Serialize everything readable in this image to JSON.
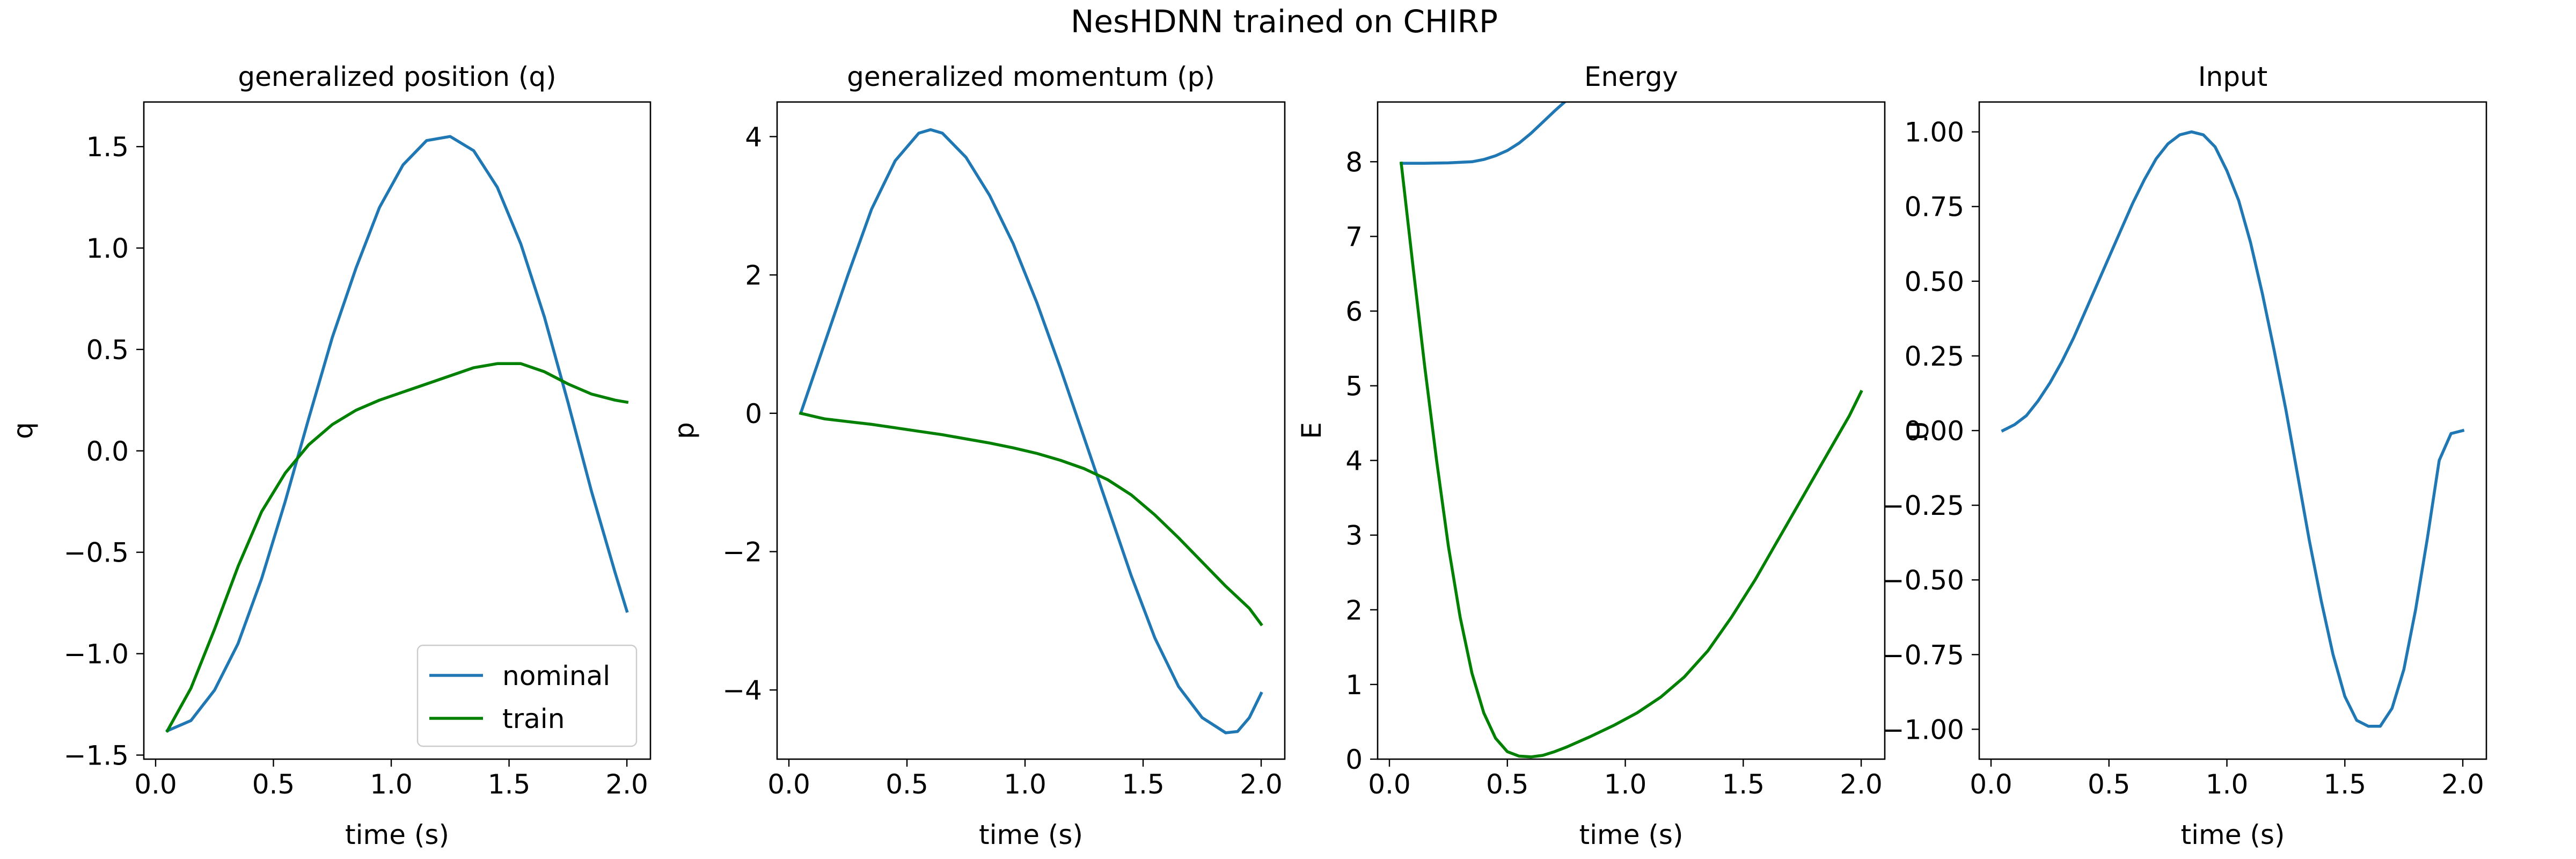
{
  "figure": {
    "title": "NesHDNN trained on CHIRP"
  },
  "colors": {
    "nominal": "#1f77b4",
    "train": "#008000"
  },
  "chart_data": [
    {
      "type": "line",
      "title": "generalized position (q)",
      "xlabel": "time (s)",
      "ylabel": "q",
      "xlim": [
        -0.05,
        2.1
      ],
      "ylim": [
        -1.52,
        1.72
      ],
      "xticks": [
        0.0,
        0.5,
        1.0,
        1.5,
        2.0
      ],
      "xtick_labels": [
        "0.0",
        "0.5",
        "1.0",
        "1.5",
        "2.0"
      ],
      "yticks": [
        -1.5,
        -1.0,
        -0.5,
        0.0,
        0.5,
        1.0,
        1.5
      ],
      "ytick_labels": [
        "−1.5",
        "−1.0",
        "−0.5",
        "0.0",
        "0.5",
        "1.0",
        "1.5"
      ],
      "legend": {
        "position": "lower-right",
        "entries": [
          "nominal",
          "train"
        ]
      },
      "series": [
        {
          "name": "nominal",
          "color": "#1f77b4",
          "x": [
            0.05,
            0.15,
            0.25,
            0.35,
            0.45,
            0.55,
            0.65,
            0.75,
            0.85,
            0.95,
            1.05,
            1.15,
            1.25,
            1.35,
            1.45,
            1.55,
            1.65,
            1.75,
            1.85,
            1.95,
            2.0
          ],
          "y": [
            -1.38,
            -1.33,
            -1.18,
            -0.95,
            -0.63,
            -0.25,
            0.16,
            0.56,
            0.9,
            1.2,
            1.41,
            1.53,
            1.55,
            1.48,
            1.3,
            1.02,
            0.66,
            0.24,
            -0.2,
            -0.6,
            -0.79
          ]
        },
        {
          "name": "train",
          "color": "#008000",
          "x": [
            0.05,
            0.15,
            0.25,
            0.35,
            0.45,
            0.55,
            0.65,
            0.75,
            0.85,
            0.95,
            1.05,
            1.15,
            1.25,
            1.35,
            1.45,
            1.55,
            1.65,
            1.75,
            1.85,
            1.95,
            2.0
          ],
          "y": [
            -1.38,
            -1.17,
            -0.88,
            -0.57,
            -0.3,
            -0.11,
            0.03,
            0.13,
            0.2,
            0.25,
            0.29,
            0.33,
            0.37,
            0.41,
            0.43,
            0.43,
            0.39,
            0.33,
            0.28,
            0.25,
            0.24
          ]
        }
      ]
    },
    {
      "type": "line",
      "title": "generalized momentum (p)",
      "xlabel": "time (s)",
      "ylabel": "p",
      "xlim": [
        -0.05,
        2.1
      ],
      "ylim": [
        -5.0,
        4.5
      ],
      "xticks": [
        0.0,
        0.5,
        1.0,
        1.5,
        2.0
      ],
      "xtick_labels": [
        "0.0",
        "0.5",
        "1.0",
        "1.5",
        "2.0"
      ],
      "yticks": [
        -4,
        -2,
        0,
        2,
        4
      ],
      "ytick_labels": [
        "−4",
        "−2",
        "0",
        "2",
        "4"
      ],
      "series": [
        {
          "name": "nominal",
          "color": "#1f77b4",
          "x": [
            0.05,
            0.15,
            0.25,
            0.35,
            0.45,
            0.55,
            0.6,
            0.65,
            0.75,
            0.85,
            0.95,
            1.05,
            1.15,
            1.25,
            1.35,
            1.45,
            1.55,
            1.65,
            1.75,
            1.85,
            1.9,
            1.95,
            2.0
          ],
          "y": [
            0.0,
            1.0,
            2.0,
            2.95,
            3.65,
            4.05,
            4.1,
            4.05,
            3.7,
            3.15,
            2.45,
            1.6,
            0.65,
            -0.35,
            -1.35,
            -2.35,
            -3.25,
            -3.95,
            -4.4,
            -4.62,
            -4.6,
            -4.4,
            -4.05
          ]
        },
        {
          "name": "train",
          "color": "#008000",
          "x": [
            0.05,
            0.15,
            0.25,
            0.35,
            0.45,
            0.55,
            0.65,
            0.75,
            0.85,
            0.95,
            1.05,
            1.15,
            1.25,
            1.35,
            1.45,
            1.55,
            1.65,
            1.75,
            1.85,
            1.95,
            2.0
          ],
          "y": [
            0.0,
            -0.08,
            -0.12,
            -0.16,
            -0.21,
            -0.26,
            -0.31,
            -0.37,
            -0.43,
            -0.5,
            -0.58,
            -0.68,
            -0.8,
            -0.96,
            -1.18,
            -1.47,
            -1.8,
            -2.15,
            -2.5,
            -2.82,
            -3.05
          ]
        }
      ]
    },
    {
      "type": "line",
      "title": "Energy",
      "xlabel": "time (s)",
      "ylabel": "E",
      "xlim": [
        -0.05,
        2.1
      ],
      "ylim": [
        0,
        8.8
      ],
      "xticks": [
        0.0,
        0.5,
        1.0,
        1.5,
        2.0
      ],
      "xtick_labels": [
        "0.0",
        "0.5",
        "1.0",
        "1.5",
        "2.0"
      ],
      "yticks": [
        0,
        1,
        2,
        3,
        4,
        5,
        6,
        7,
        8
      ],
      "ytick_labels": [
        "0",
        "1",
        "2",
        "3",
        "4",
        "5",
        "6",
        "7",
        "8"
      ],
      "series": [
        {
          "name": "nominal",
          "color": "#1f77b4",
          "x": [
            0.05,
            0.15,
            0.25,
            0.35,
            0.4,
            0.45,
            0.5,
            0.55,
            0.6,
            0.65,
            0.7,
            0.75,
            0.8
          ],
          "y": [
            7.98,
            7.98,
            7.985,
            8.0,
            8.03,
            8.08,
            8.15,
            8.25,
            8.38,
            8.53,
            8.68,
            8.82,
            8.95
          ]
        },
        {
          "name": "train",
          "color": "#008000",
          "x": [
            0.05,
            0.1,
            0.15,
            0.2,
            0.25,
            0.3,
            0.35,
            0.4,
            0.45,
            0.5,
            0.55,
            0.6,
            0.65,
            0.7,
            0.75,
            0.85,
            0.95,
            1.05,
            1.15,
            1.25,
            1.35,
            1.45,
            1.55,
            1.65,
            1.75,
            1.85,
            1.95,
            2.0
          ],
          "y": [
            7.98,
            6.6,
            5.25,
            4.0,
            2.85,
            1.9,
            1.15,
            0.62,
            0.28,
            0.1,
            0.04,
            0.03,
            0.05,
            0.1,
            0.16,
            0.3,
            0.45,
            0.62,
            0.83,
            1.1,
            1.45,
            1.9,
            2.4,
            2.95,
            3.5,
            4.05,
            4.6,
            4.92
          ]
        }
      ]
    },
    {
      "type": "line",
      "title": "Input",
      "xlabel": "time (s)",
      "ylabel": "U",
      "xlim": [
        -0.05,
        2.1
      ],
      "ylim": [
        -1.1,
        1.1
      ],
      "xticks": [
        0.0,
        0.5,
        1.0,
        1.5,
        2.0
      ],
      "xtick_labels": [
        "0.0",
        "0.5",
        "1.0",
        "1.5",
        "2.0"
      ],
      "yticks": [
        -1.0,
        -0.75,
        -0.5,
        -0.25,
        0.0,
        0.25,
        0.5,
        0.75,
        1.0
      ],
      "ytick_labels": [
        "−1.00",
        "−0.75",
        "−0.50",
        "−0.25",
        "0.00",
        "0.25",
        "0.50",
        "0.75",
        "1.00"
      ],
      "series": [
        {
          "name": "nominal",
          "color": "#1f77b4",
          "x": [
            0.05,
            0.1,
            0.15,
            0.2,
            0.25,
            0.3,
            0.35,
            0.4,
            0.45,
            0.5,
            0.55,
            0.6,
            0.65,
            0.7,
            0.75,
            0.8,
            0.85,
            0.9,
            0.95,
            1.0,
            1.05,
            1.1,
            1.15,
            1.2,
            1.25,
            1.3,
            1.35,
            1.4,
            1.45,
            1.5,
            1.55,
            1.6,
            1.65,
            1.7,
            1.75,
            1.8,
            1.85,
            1.9,
            1.95,
            2.0
          ],
          "y": [
            0.0,
            0.02,
            0.05,
            0.1,
            0.16,
            0.23,
            0.31,
            0.4,
            0.49,
            0.58,
            0.67,
            0.76,
            0.84,
            0.91,
            0.96,
            0.99,
            1.0,
            0.99,
            0.95,
            0.87,
            0.77,
            0.63,
            0.46,
            0.27,
            0.07,
            -0.15,
            -0.37,
            -0.57,
            -0.75,
            -0.89,
            -0.97,
            -0.99,
            -0.99,
            -0.93,
            -0.8,
            -0.6,
            -0.36,
            -0.1,
            -0.01,
            0.0
          ]
        }
      ]
    }
  ]
}
